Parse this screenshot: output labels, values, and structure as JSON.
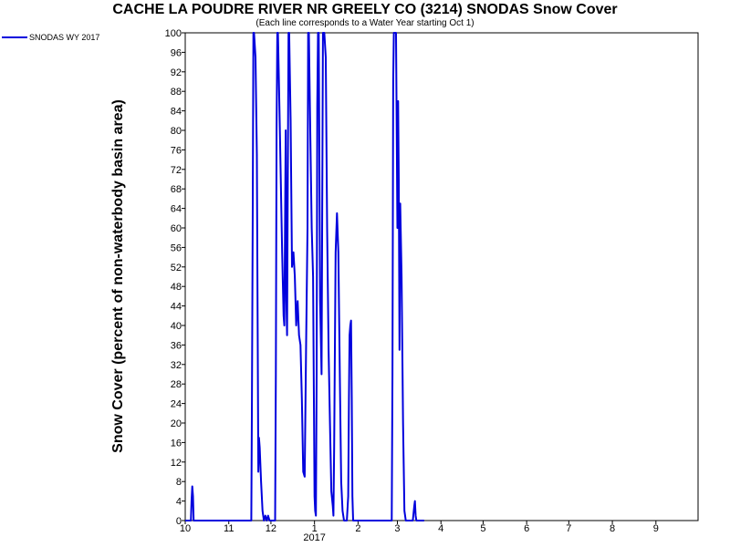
{
  "chart_data": {
    "type": "line",
    "title": "CACHE LA POUDRE RIVER NR GREELY CO (3214) SNODAS Snow Cover",
    "subtitle": "(Each line corresponds to a Water Year starting Oct 1)",
    "ylabel": "Snow Cover (percent of non-waterbody basin area)",
    "xlabel": "",
    "ylim": [
      0,
      100
    ],
    "y_ticks": [
      0,
      4,
      8,
      12,
      16,
      20,
      24,
      28,
      32,
      36,
      40,
      44,
      48,
      52,
      56,
      60,
      64,
      68,
      72,
      76,
      80,
      84,
      88,
      92,
      96,
      100
    ],
    "x_range_days": [
      0,
      365
    ],
    "x_ticks": [
      {
        "label": "10",
        "day": 0
      },
      {
        "label": "11",
        "day": 31
      },
      {
        "label": "12",
        "day": 61
      },
      {
        "label": "1",
        "day": 92
      },
      {
        "label": "2",
        "day": 123
      },
      {
        "label": "3",
        "day": 151
      },
      {
        "label": "4",
        "day": 182
      },
      {
        "label": "5",
        "day": 212
      },
      {
        "label": "6",
        "day": 243
      },
      {
        "label": "7",
        "day": 273
      },
      {
        "label": "8",
        "day": 304
      },
      {
        "label": "9",
        "day": 335
      }
    ],
    "year_label": {
      "text": "2017",
      "day": 92
    },
    "grid": false,
    "legend_position": "top-left",
    "series": [
      {
        "name": "SNODAS WY 2017",
        "color": "#0000dd",
        "points": [
          [
            0,
            0
          ],
          [
            4,
            0
          ],
          [
            4.5,
            4
          ],
          [
            5,
            7
          ],
          [
            5.5,
            5
          ],
          [
            6,
            0
          ],
          [
            20,
            0
          ],
          [
            47,
            0
          ],
          [
            47.5,
            25
          ],
          [
            48,
            60
          ],
          [
            48.5,
            100
          ],
          [
            49,
            100
          ],
          [
            50,
            95
          ],
          [
            51,
            75
          ],
          [
            52,
            10
          ],
          [
            52.5,
            17
          ],
          [
            53,
            15
          ],
          [
            54,
            8
          ],
          [
            55,
            2
          ],
          [
            56,
            0
          ],
          [
            57,
            1
          ],
          [
            58,
            0
          ],
          [
            59,
            1
          ],
          [
            60,
            0
          ],
          [
            64,
            0
          ],
          [
            64.5,
            30
          ],
          [
            65,
            80
          ],
          [
            65.5,
            100
          ],
          [
            66,
            100
          ],
          [
            67,
            85
          ],
          [
            68,
            70
          ],
          [
            69,
            55
          ],
          [
            70,
            42
          ],
          [
            70.5,
            40
          ],
          [
            71,
            58
          ],
          [
            71.5,
            80
          ],
          [
            72,
            45
          ],
          [
            72.5,
            38
          ],
          [
            73,
            70
          ],
          [
            73.5,
            100
          ],
          [
            74,
            100
          ],
          [
            75,
            82
          ],
          [
            75.5,
            68
          ],
          [
            76,
            52
          ],
          [
            77,
            55
          ],
          [
            78,
            50
          ],
          [
            79,
            40
          ],
          [
            80,
            45
          ],
          [
            81,
            38
          ],
          [
            82,
            36
          ],
          [
            83,
            25
          ],
          [
            84,
            10
          ],
          [
            85,
            9
          ],
          [
            86,
            35
          ],
          [
            87,
            60
          ],
          [
            87.5,
            100
          ],
          [
            88,
            100
          ],
          [
            89,
            80
          ],
          [
            90,
            60
          ],
          [
            91,
            50
          ],
          [
            92,
            5
          ],
          [
            92.5,
            2
          ],
          [
            93,
            1
          ],
          [
            93.5,
            30
          ],
          [
            94,
            85
          ],
          [
            94.5,
            100
          ],
          [
            95,
            100
          ],
          [
            96,
            45
          ],
          [
            97,
            30
          ],
          [
            98,
            100
          ],
          [
            99,
            100
          ],
          [
            100,
            95
          ],
          [
            101,
            60
          ],
          [
            102,
            35
          ],
          [
            103,
            20
          ],
          [
            104,
            6
          ],
          [
            105,
            3
          ],
          [
            105.5,
            1
          ],
          [
            106,
            15
          ],
          [
            107,
            55
          ],
          [
            108,
            63
          ],
          [
            109,
            55
          ],
          [
            110,
            30
          ],
          [
            111,
            8
          ],
          [
            112,
            2
          ],
          [
            113,
            0
          ],
          [
            115,
            0
          ],
          [
            116,
            5
          ],
          [
            116.5,
            25
          ],
          [
            117,
            38
          ],
          [
            117.5,
            40
          ],
          [
            118,
            41
          ],
          [
            118.5,
            25
          ],
          [
            119,
            5
          ],
          [
            119.5,
            0
          ],
          [
            147,
            0
          ],
          [
            147.5,
            30
          ],
          [
            148,
            90
          ],
          [
            148.5,
            100
          ],
          [
            149,
            100
          ],
          [
            150,
            100
          ],
          [
            151,
            60
          ],
          [
            151.5,
            86
          ],
          [
            152,
            70
          ],
          [
            152.5,
            35
          ],
          [
            153,
            65
          ],
          [
            154,
            50
          ],
          [
            155,
            20
          ],
          [
            156,
            2
          ],
          [
            157,
            0
          ],
          [
            162,
            0
          ],
          [
            163,
            3
          ],
          [
            163.5,
            4
          ],
          [
            164,
            1
          ],
          [
            164.5,
            0
          ],
          [
            170,
            0
          ]
        ]
      }
    ]
  }
}
